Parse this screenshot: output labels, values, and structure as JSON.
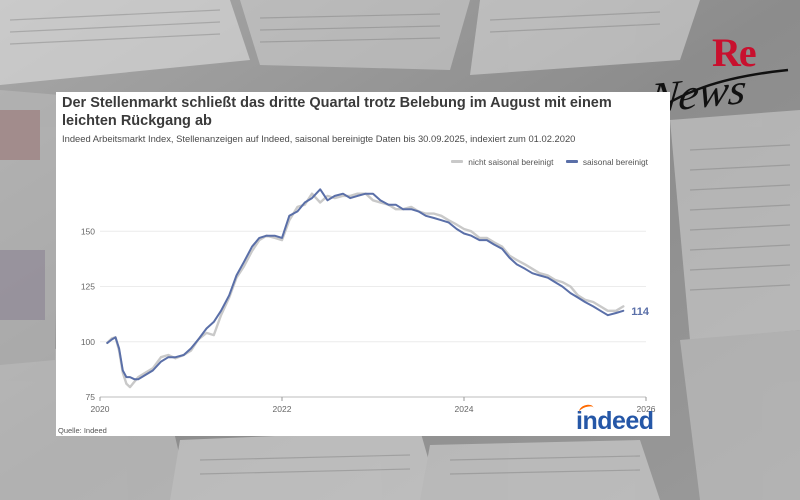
{
  "header": {
    "title": "Der Stellenmarkt schließt das dritte Quartal trotz Belebung im August mit einem leichten Rückgang ab",
    "subtitle": "Indeed Arbeitsmarkt Index, Stellenanzeigen auf Indeed, saisonal bereinigte Daten bis 30.09.2025, indexiert zum 01.02.2020"
  },
  "source": "Quelle: Indeed",
  "brand": {
    "text": "indeed",
    "primary_color": "#2557a7",
    "accent_color": "#ff6a00"
  },
  "site_logo": {
    "part1": "Re",
    "part2": "News",
    "color1": "#c8102e",
    "color2": "#111111"
  },
  "colors": {
    "sa_line": "#5a6fa8",
    "nsa_line": "#c9c9c9",
    "background_page": "#8e8e8e"
  },
  "chart_data": {
    "type": "line",
    "title": "Der Stellenmarkt schließt das dritte Quartal trotz Belebung im August mit einem leichten Rückgang ab",
    "xlabel": "",
    "ylabel": "",
    "xlim": [
      2020.0,
      2026.0
    ],
    "ylim": [
      75,
      175
    ],
    "x_ticks": [
      "2020",
      "2022",
      "2024",
      "2026"
    ],
    "y_ticks": [
      "75",
      "100",
      "125",
      "150"
    ],
    "grid": "horizontal",
    "legend_position": "top-right",
    "end_label": "114",
    "series": [
      {
        "name": "nicht saisonal bereinigt",
        "color": "#c9c9c9",
        "x": [
          2020.08,
          2020.13,
          2020.17,
          2020.21,
          2020.25,
          2020.29,
          2020.33,
          2020.38,
          2020.42,
          2020.5,
          2020.58,
          2020.67,
          2020.75,
          2020.83,
          2020.92,
          2021.0,
          2021.08,
          2021.17,
          2021.25,
          2021.33,
          2021.42,
          2021.5,
          2021.58,
          2021.67,
          2021.75,
          2021.83,
          2021.92,
          2022.0,
          2022.08,
          2022.17,
          2022.25,
          2022.33,
          2022.42,
          2022.5,
          2022.58,
          2022.67,
          2022.75,
          2022.83,
          2022.92,
          2023.0,
          2023.08,
          2023.17,
          2023.25,
          2023.33,
          2023.42,
          2023.5,
          2023.58,
          2023.67,
          2023.75,
          2023.83,
          2023.92,
          2024.0,
          2024.08,
          2024.17,
          2024.25,
          2024.33,
          2024.42,
          2024.5,
          2024.58,
          2024.67,
          2024.75,
          2024.83,
          2024.92,
          2025.0,
          2025.08,
          2025.17,
          2025.25,
          2025.33,
          2025.42,
          2025.5,
          2025.58,
          2025.67,
          2025.75
        ],
        "y": [
          99.5,
          101.5,
          102,
          96,
          86,
          81,
          79.5,
          82,
          84,
          86,
          88,
          93,
          94,
          92.5,
          94,
          96,
          101,
          104,
          103,
          112,
          120,
          129,
          134,
          141,
          146,
          148,
          147,
          146,
          155,
          161,
          162,
          167,
          163,
          166,
          165,
          166,
          166,
          167,
          167,
          164,
          163,
          162,
          160,
          160,
          161,
          159,
          158,
          158,
          157,
          155,
          153,
          151,
          150,
          147,
          147,
          145,
          143,
          139,
          137,
          135,
          133,
          131,
          130,
          128,
          127,
          125,
          121,
          119,
          118,
          116,
          114,
          114,
          116
        ]
      },
      {
        "name": "saisonal bereinigt",
        "color": "#5a6fa8",
        "x": [
          2020.08,
          2020.13,
          2020.17,
          2020.21,
          2020.25,
          2020.29,
          2020.33,
          2020.38,
          2020.42,
          2020.5,
          2020.58,
          2020.67,
          2020.75,
          2020.83,
          2020.92,
          2021.0,
          2021.08,
          2021.17,
          2021.25,
          2021.33,
          2021.42,
          2021.5,
          2021.58,
          2021.67,
          2021.75,
          2021.83,
          2021.92,
          2022.0,
          2022.08,
          2022.17,
          2022.25,
          2022.33,
          2022.42,
          2022.5,
          2022.58,
          2022.67,
          2022.75,
          2022.83,
          2022.92,
          2023.0,
          2023.08,
          2023.17,
          2023.25,
          2023.33,
          2023.42,
          2023.5,
          2023.58,
          2023.67,
          2023.75,
          2023.83,
          2023.92,
          2024.0,
          2024.08,
          2024.17,
          2024.25,
          2024.33,
          2024.42,
          2024.5,
          2024.58,
          2024.67,
          2024.75,
          2024.83,
          2024.92,
          2025.0,
          2025.08,
          2025.17,
          2025.25,
          2025.33,
          2025.42,
          2025.5,
          2025.58,
          2025.67,
          2025.75
        ],
        "y": [
          99.5,
          101,
          102,
          97,
          87,
          84,
          84,
          83,
          83,
          85,
          87,
          91,
          93,
          93,
          94,
          97,
          101,
          106,
          109,
          114,
          121,
          130,
          136,
          143,
          147,
          148,
          148,
          147,
          157,
          159,
          163,
          165,
          169,
          164,
          166,
          167,
          165,
          166,
          167,
          167,
          164,
          162,
          162,
          160,
          160,
          159,
          157,
          156,
          155,
          154,
          151,
          149,
          148,
          146,
          146,
          144,
          142,
          138,
          135,
          133,
          131,
          130,
          129,
          127,
          125,
          122,
          120,
          118,
          116,
          114,
          112,
          113,
          114
        ]
      }
    ]
  }
}
